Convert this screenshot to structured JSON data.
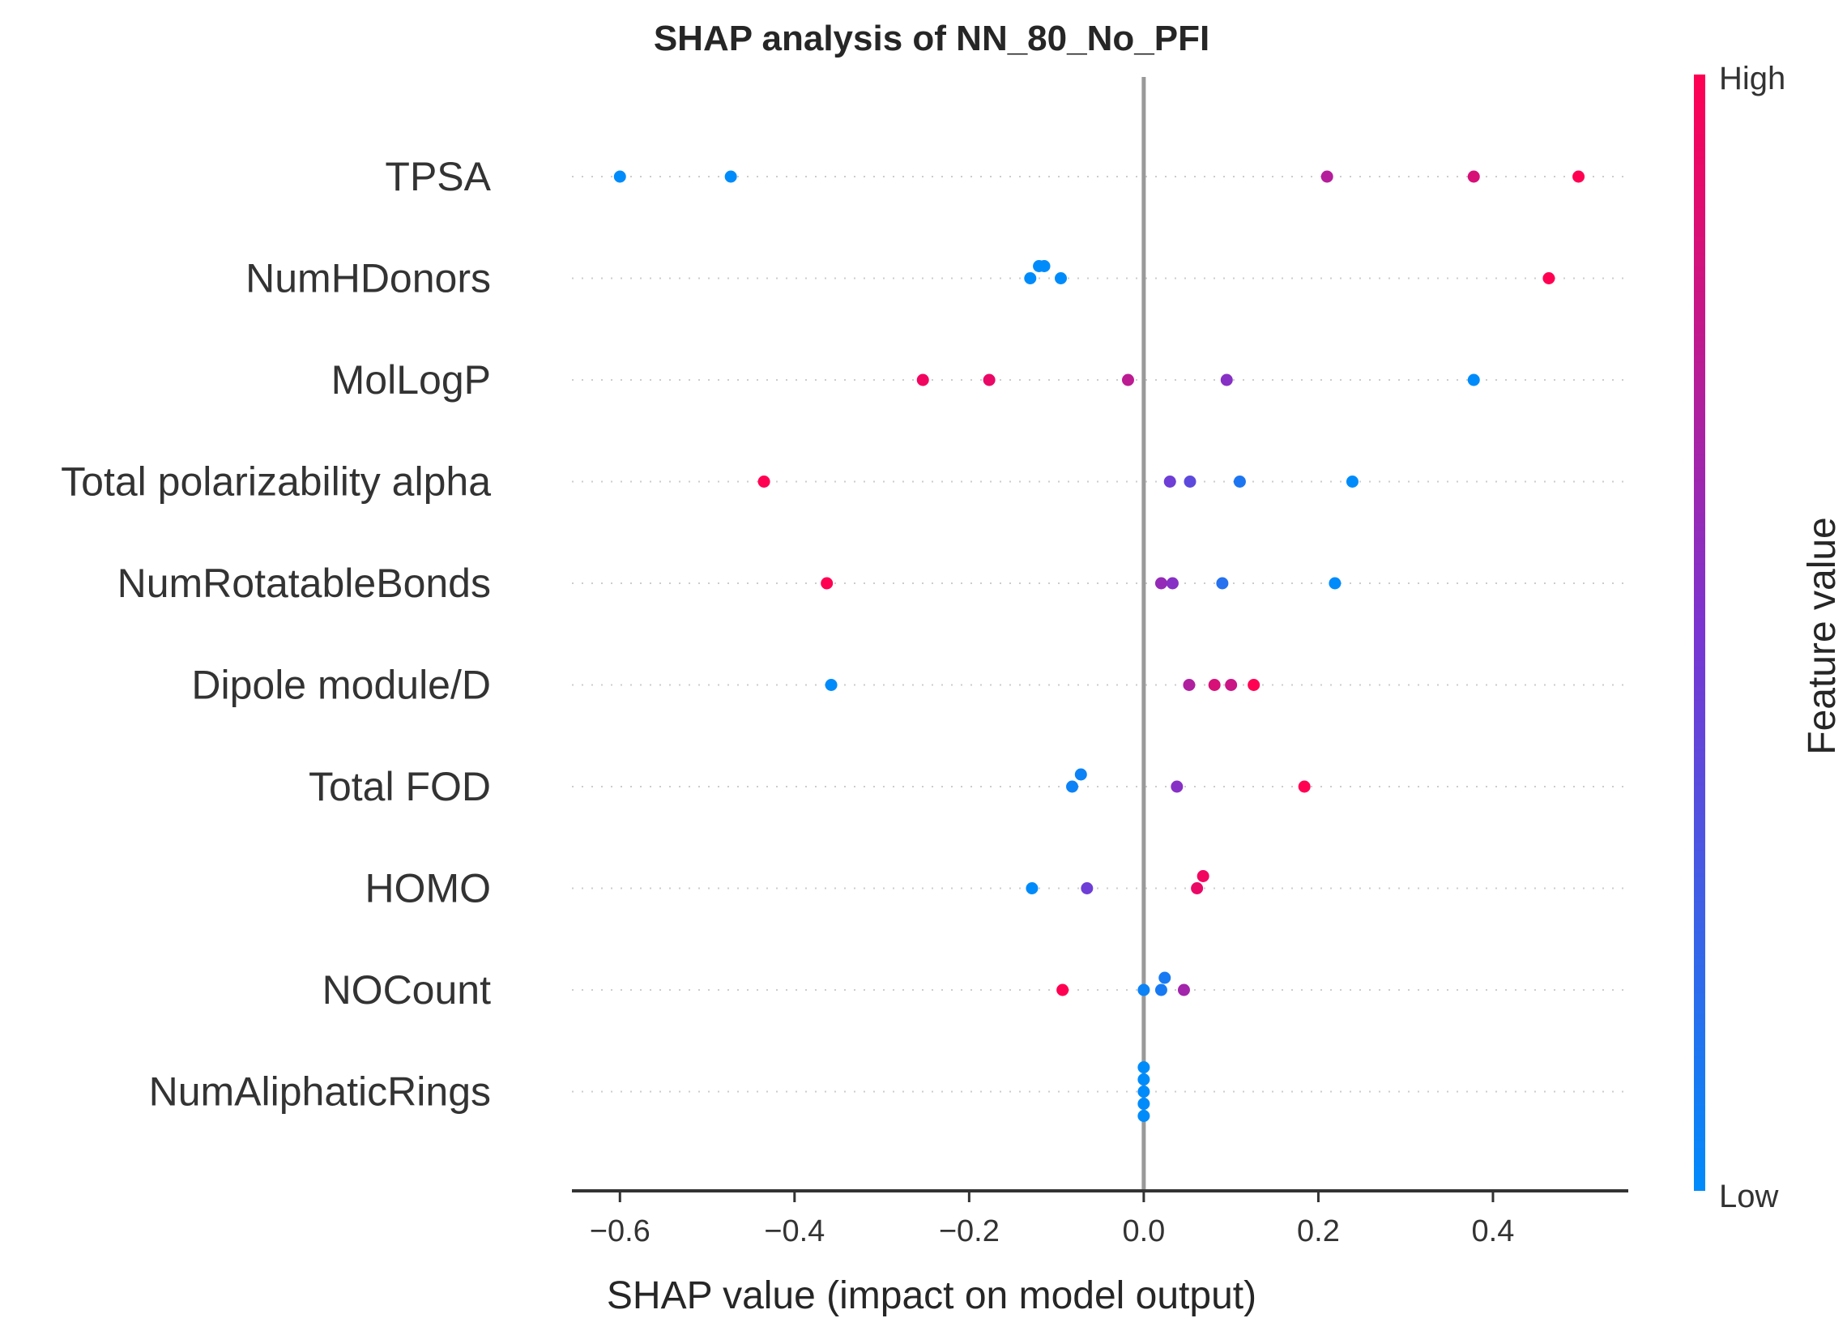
{
  "chart_data": {
    "type": "scatter",
    "subtype": "shap-beeswarm",
    "title": "SHAP analysis of NN_80_No_PFI",
    "xlabel": "SHAP value (impact on model output)",
    "xlim": [
      -0.655,
      0.555
    ],
    "xticks": [
      -0.6,
      -0.4,
      -0.2,
      0.0,
      0.2,
      0.4
    ],
    "xtick_labels": [
      "−0.6",
      "−0.4",
      "−0.2",
      "0.0",
      "0.2",
      "0.4"
    ],
    "zero_line": true,
    "colorbar": {
      "label": "Feature value",
      "high_label": "High",
      "low_label": "Low",
      "high_color": "#ff0052",
      "low_color": "#008bfb"
    },
    "features": [
      {
        "name": "TPSA",
        "points": [
          {
            "x": -0.6,
            "v": 0.0
          },
          {
            "x": -0.473,
            "v": 0.0
          },
          {
            "x": 0.21,
            "v": 0.72
          },
          {
            "x": 0.378,
            "v": 0.85
          },
          {
            "x": 0.498,
            "v": 1.0
          }
        ]
      },
      {
        "name": "NumHDonors",
        "points": [
          {
            "x": -0.13,
            "v": 0.0
          },
          {
            "x": -0.12,
            "v": 0.0
          },
          {
            "x": -0.114,
            "v": 0.0
          },
          {
            "x": -0.095,
            "v": 0.0
          },
          {
            "x": 0.464,
            "v": 1.0
          }
        ]
      },
      {
        "name": "MolLogP",
        "points": [
          {
            "x": -0.253,
            "v": 0.95
          },
          {
            "x": -0.177,
            "v": 0.92
          },
          {
            "x": -0.018,
            "v": 0.75
          },
          {
            "x": 0.095,
            "v": 0.55
          },
          {
            "x": 0.378,
            "v": 0.0
          }
        ]
      },
      {
        "name": "Total polarizability alpha",
        "points": [
          {
            "x": -0.435,
            "v": 1.0
          },
          {
            "x": 0.03,
            "v": 0.45
          },
          {
            "x": 0.053,
            "v": 0.38
          },
          {
            "x": 0.11,
            "v": 0.12
          },
          {
            "x": 0.239,
            "v": 0.0
          }
        ]
      },
      {
        "name": "NumRotatableBonds",
        "points": [
          {
            "x": -0.363,
            "v": 1.0
          },
          {
            "x": 0.02,
            "v": 0.6
          },
          {
            "x": 0.033,
            "v": 0.55
          },
          {
            "x": 0.09,
            "v": 0.15
          },
          {
            "x": 0.219,
            "v": 0.0
          }
        ]
      },
      {
        "name": "Dipole module/D",
        "points": [
          {
            "x": -0.358,
            "v": 0.0
          },
          {
            "x": 0.052,
            "v": 0.7
          },
          {
            "x": 0.081,
            "v": 0.85
          },
          {
            "x": 0.1,
            "v": 0.8
          },
          {
            "x": 0.126,
            "v": 1.0
          }
        ]
      },
      {
        "name": "Total FOD",
        "points": [
          {
            "x": -0.082,
            "v": 0.05
          },
          {
            "x": -0.072,
            "v": 0.05
          },
          {
            "x": 0.038,
            "v": 0.55
          },
          {
            "x": 0.184,
            "v": 1.0
          }
        ]
      },
      {
        "name": "HOMO",
        "points": [
          {
            "x": -0.128,
            "v": 0.0
          },
          {
            "x": -0.065,
            "v": 0.45
          },
          {
            "x": 0.061,
            "v": 0.92
          },
          {
            "x": 0.068,
            "v": 0.95
          }
        ]
      },
      {
        "name": "NOCount",
        "points": [
          {
            "x": -0.093,
            "v": 1.0
          },
          {
            "x": 0.0,
            "v": 0.05
          },
          {
            "x": 0.02,
            "v": 0.1
          },
          {
            "x": 0.024,
            "v": 0.1
          },
          {
            "x": 0.046,
            "v": 0.65
          }
        ]
      },
      {
        "name": "NumAliphaticRings",
        "points": [
          {
            "x": 0.0,
            "v": 0.0
          },
          {
            "x": 0.0,
            "v": 0.0
          },
          {
            "x": 0.0,
            "v": 0.0
          },
          {
            "x": 0.0,
            "v": 0.0
          },
          {
            "x": 0.0,
            "v": 0.0
          }
        ]
      }
    ]
  }
}
